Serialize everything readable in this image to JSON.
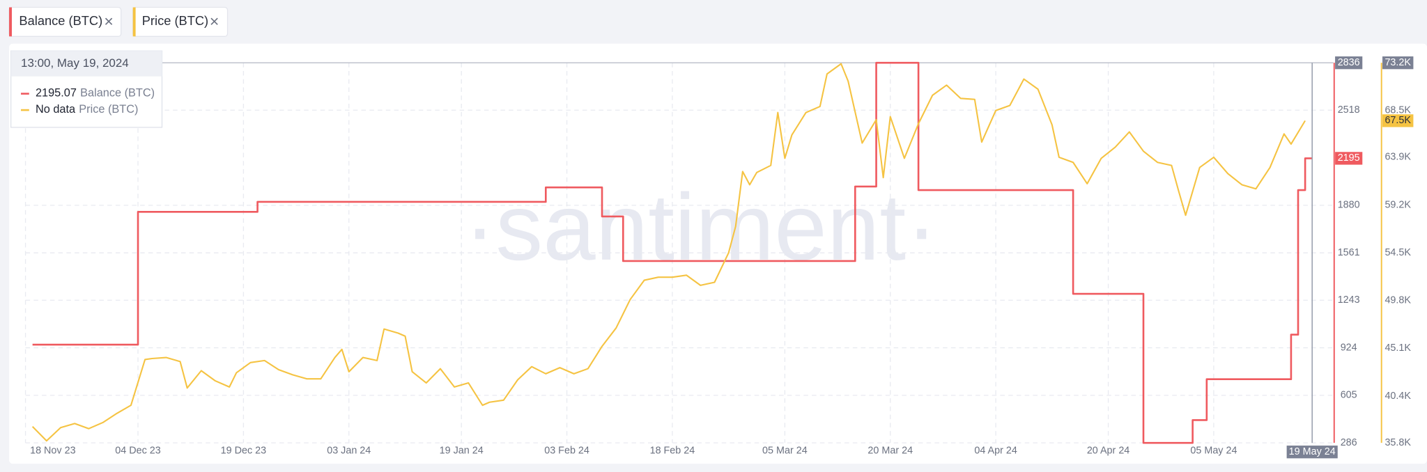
{
  "chart_data": {
    "type": "line",
    "watermark": "·santiment·",
    "xlim": [
      "2023-11-18",
      "2024-05-22"
    ],
    "xticks": [
      {
        "value": "2023-11-18",
        "label": "18 Nov 23"
      },
      {
        "value": "2023-12-04",
        "label": "04 Dec 23"
      },
      {
        "value": "2023-12-19",
        "label": "19 Dec 23"
      },
      {
        "value": "2024-01-03",
        "label": "03 Jan 24"
      },
      {
        "value": "2024-01-19",
        "label": "19 Jan 24"
      },
      {
        "value": "2024-02-03",
        "label": "03 Feb 24"
      },
      {
        "value": "2024-02-18",
        "label": "18 Feb 24"
      },
      {
        "value": "2024-03-05",
        "label": "05 Mar 24"
      },
      {
        "value": "2024-03-20",
        "label": "20 Mar 24"
      },
      {
        "value": "2024-04-04",
        "label": "04 Apr 24"
      },
      {
        "value": "2024-04-20",
        "label": "20 Apr 24"
      },
      {
        "value": "2024-05-05",
        "label": "05 May 24"
      }
    ],
    "x_marker": {
      "value": "2024-05-19",
      "label": "19 May 24"
    },
    "ylim": [
      286,
      2836
    ],
    "yticks": [
      286,
      605,
      924,
      1243,
      1561,
      1880,
      2518,
      2836
    ],
    "y2lim": [
      35800,
      73200
    ],
    "y2ticks": [
      {
        "value": 35800,
        "label": "35.8K"
      },
      {
        "value": 40400,
        "label": "40.4K"
      },
      {
        "value": 45100,
        "label": "45.1K"
      },
      {
        "value": 49800,
        "label": "49.8K"
      },
      {
        "value": 54500,
        "label": "54.5K"
      },
      {
        "value": 59200,
        "label": "59.2K"
      },
      {
        "value": 63900,
        "label": "63.9K"
      },
      {
        "value": 68500,
        "label": "68.5K"
      },
      {
        "value": 73200,
        "label": "73.2K"
      }
    ],
    "y2_marker": {
      "value": 67500,
      "label": "67.5K"
    },
    "grid": true,
    "tooltip": {
      "title": "13:00, May 19, 2024",
      "values": [
        2195.07,
        "No data"
      ]
    },
    "series": [
      {
        "name": "Balance (BTC)",
        "color": "#ef5a5f",
        "step": true,
        "axis": "y",
        "x": [
          "2023-11-19",
          "2023-12-04",
          "2023-12-21",
          "2024-01-31",
          "2024-02-08",
          "2024-02-11",
          "2024-03-15",
          "2024-03-18",
          "2024-03-24",
          "2024-04-15",
          "2024-04-25",
          "2024-05-02",
          "2024-05-04",
          "2024-05-16",
          "2024-05-17",
          "2024-05-18",
          "2024-05-19"
        ],
        "values": [
          945,
          1836,
          1903,
          2000,
          1805,
          1506,
          2006,
          2836,
          1982,
          1286,
          286,
          439,
          713,
          1012,
          1982,
          2195,
          2195
        ]
      },
      {
        "name": "Price (BTC)",
        "color": "#f5c342",
        "axis": "y2",
        "x": [
          "2023-11-19",
          "2023-11-21",
          "2023-11-23",
          "2023-11-25",
          "2023-11-27",
          "2023-11-29",
          "2023-12-01",
          "2023-12-03",
          "2023-12-05",
          "2023-12-06",
          "2023-12-08",
          "2023-12-10",
          "2023-12-11",
          "2023-12-13",
          "2023-12-15",
          "2023-12-17",
          "2023-12-18",
          "2023-12-20",
          "2023-12-22",
          "2023-12-24",
          "2023-12-26",
          "2023-12-28",
          "2023-12-30",
          "2024-01-01",
          "2024-01-02",
          "2024-01-03",
          "2024-01-05",
          "2024-01-07",
          "2024-01-08",
          "2024-01-10",
          "2024-01-11",
          "2024-01-12",
          "2024-01-14",
          "2024-01-16",
          "2024-01-18",
          "2024-01-20",
          "2024-01-22",
          "2024-01-23",
          "2024-01-25",
          "2024-01-27",
          "2024-01-29",
          "2024-01-31",
          "2024-02-02",
          "2024-02-04",
          "2024-02-06",
          "2024-02-08",
          "2024-02-10",
          "2024-02-12",
          "2024-02-14",
          "2024-02-16",
          "2024-02-18",
          "2024-02-20",
          "2024-02-22",
          "2024-02-24",
          "2024-02-26",
          "2024-02-27",
          "2024-02-28",
          "2024-02-29",
          "2024-03-01",
          "2024-03-03",
          "2024-03-04",
          "2024-03-05",
          "2024-03-06",
          "2024-03-08",
          "2024-03-10",
          "2024-03-11",
          "2024-03-13",
          "2024-03-14",
          "2024-03-16",
          "2024-03-18",
          "2024-03-19",
          "2024-03-20",
          "2024-03-22",
          "2024-03-24",
          "2024-03-26",
          "2024-03-28",
          "2024-03-30",
          "2024-04-01",
          "2024-04-02",
          "2024-04-04",
          "2024-04-06",
          "2024-04-08",
          "2024-04-10",
          "2024-04-12",
          "2024-04-13",
          "2024-04-15",
          "2024-04-17",
          "2024-04-19",
          "2024-04-21",
          "2024-04-23",
          "2024-04-25",
          "2024-04-27",
          "2024-04-29",
          "2024-04-30",
          "2024-05-01",
          "2024-05-03",
          "2024-05-05",
          "2024-05-07",
          "2024-05-09",
          "2024-05-11",
          "2024-05-13",
          "2024-05-15",
          "2024-05-16",
          "2024-05-18"
        ],
        "values": [
          37400,
          36000,
          37300,
          37700,
          37200,
          37800,
          38700,
          39500,
          44000,
          44100,
          44200,
          43800,
          41200,
          42900,
          41900,
          41300,
          42700,
          43700,
          43900,
          43000,
          42500,
          42100,
          42100,
          44200,
          45000,
          42800,
          44200,
          43900,
          47000,
          46600,
          46300,
          42800,
          41700,
          43100,
          41300,
          41700,
          39500,
          39800,
          40000,
          42000,
          43300,
          42600,
          43200,
          42600,
          43100,
          45300,
          47100,
          49900,
          51800,
          52100,
          52100,
          52300,
          51300,
          51600,
          54500,
          57100,
          62500,
          61200,
          62400,
          63100,
          68300,
          63800,
          66100,
          68300,
          68900,
          72100,
          73100,
          71400,
          65300,
          67600,
          61900,
          67900,
          63800,
          67200,
          70000,
          71000,
          69700,
          69600,
          65400,
          68500,
          69000,
          71600,
          70600,
          67100,
          63900,
          63400,
          61300,
          63800,
          64900,
          66400,
          64500,
          63400,
          63100,
          60600,
          58200,
          62900,
          63900,
          62300,
          61200,
          60800,
          62900,
          66200,
          65200,
          67500
        ]
      }
    ]
  }
}
